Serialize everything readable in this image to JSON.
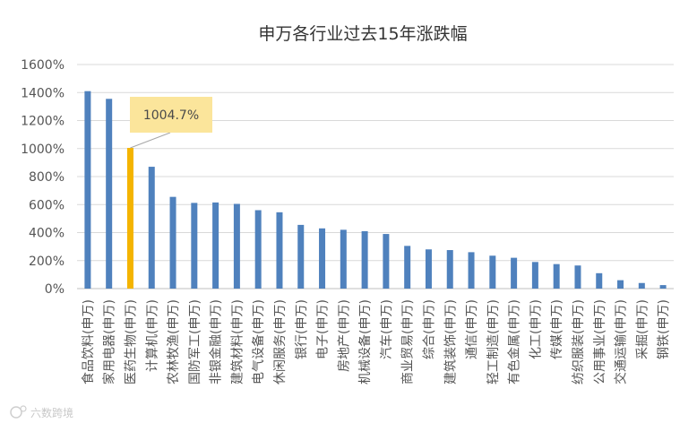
{
  "chart_data": {
    "type": "bar",
    "title": "申万各行业过去15年涨跌幅",
    "categories": [
      "食品饮料(申万)",
      "家用电器(申万)",
      "医药生物(申万)",
      "计算机(申万)",
      "农林牧渔(申万)",
      "国防军工(申万)",
      "非银金融(申万)",
      "建筑材料(申万)",
      "电气设备(申万)",
      "休闲服务(申万)",
      "银行(申万)",
      "电子(申万)",
      "房地产(申万)",
      "机械设备(申万)",
      "汽车(申万)",
      "商业贸易(申万)",
      "综合(申万)",
      "建筑装饰(申万)",
      "通信(申万)",
      "轻工制造(申万)",
      "有色金属(申万)",
      "化工(申万)",
      "传媒(申万)",
      "纺织服装(申万)",
      "公用事业(申万)",
      "交通运输(申万)",
      "采掘(申万)",
      "钢铁(申万)"
    ],
    "values": [
      1410,
      1355,
      1004.7,
      870,
      655,
      612,
      615,
      605,
      560,
      545,
      455,
      430,
      420,
      410,
      390,
      305,
      280,
      275,
      260,
      235,
      220,
      190,
      175,
      165,
      110,
      60,
      40,
      25
    ],
    "y_ticks": [
      "0%",
      "200%",
      "400%",
      "600%",
      "800%",
      "1000%",
      "1200%",
      "1400%",
      "1600%"
    ],
    "ylim": [
      0,
      1600
    ],
    "grid": true,
    "bar_color": "#4f81bd",
    "highlight_index": 2,
    "highlight_color": "#f4b400",
    "callout": {
      "text": "1004.7%",
      "target_index": 2,
      "box_color": "#fbe59b"
    }
  },
  "watermark": {
    "text": "六数跨境",
    "icon": "logo-icon"
  }
}
